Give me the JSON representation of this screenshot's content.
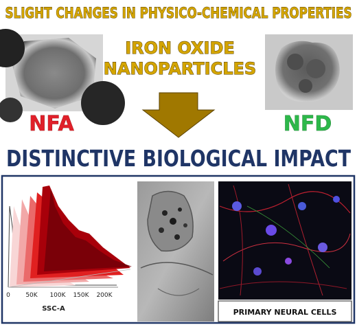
{
  "header": {
    "title": "SLIGHT CHANGES IN PHYSICO-CHEMICAL PROPERTIES"
  },
  "center": {
    "lines": [
      "IRON OXIDE",
      "NANOPARTICLES"
    ]
  },
  "labels": {
    "left": "NFA",
    "right": "NFD"
  },
  "banner": "DISTINCTIVE BIOLOGICAL IMPACT",
  "flow_panel": {
    "x_ticks": [
      "0",
      "50K",
      "100K",
      "150K",
      "200K"
    ],
    "x_label": "SSC-A"
  },
  "caption": "PRIMARY NEURAL CELLS"
}
